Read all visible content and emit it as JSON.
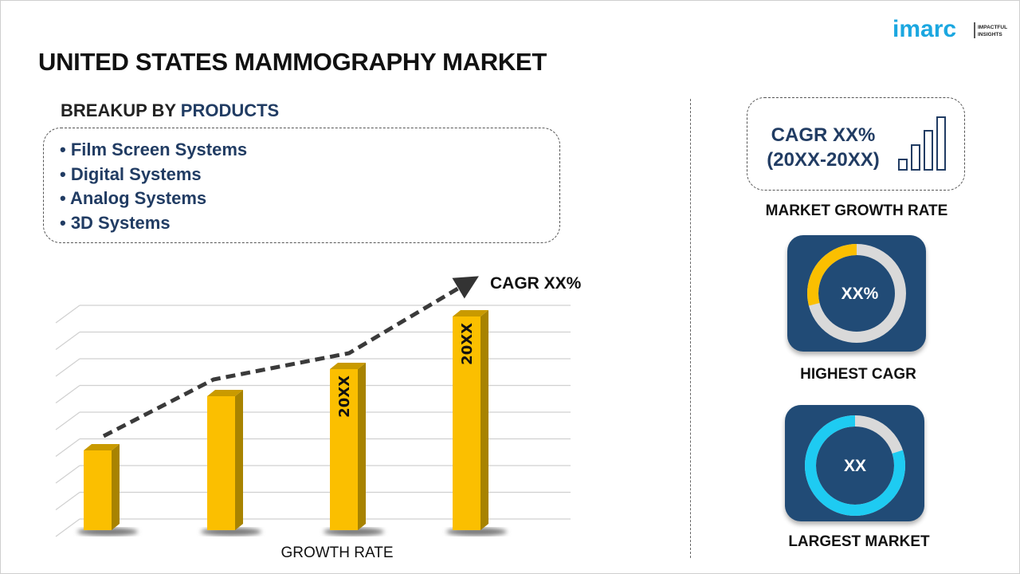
{
  "logo": {
    "brand": "imarc",
    "tagline_line1": "IMPACTFUL",
    "tagline_line2": "INSIGHTS"
  },
  "title": "UNITED STATES MAMMOGRAPHY MARKET",
  "breakup": {
    "prefix": "BREAKUP BY ",
    "highlight": "PRODUCTS",
    "items": [
      "• Film Screen Systems",
      "• Digital Systems",
      "• Analog Systems",
      "• 3D Systems"
    ]
  },
  "chart": {
    "cagr_label": "CAGR XX%",
    "bar_labels": [
      "",
      "",
      "20XX",
      "20XX"
    ],
    "xlabel": "GROWTH RATE",
    "bar_color": "#fbbf00",
    "line_style": "dashed-arrow"
  },
  "market_growth": {
    "line1": "CAGR XX%",
    "line2": "(20XX-20XX)",
    "label": "MARKET GROWTH RATE",
    "icon": "bar-chart-icon"
  },
  "highest_cagr": {
    "value": "XX%",
    "label": "HIGHEST CAGR",
    "ring_fill_percent": 29,
    "ring_color": "#fbbf00"
  },
  "largest_market": {
    "value": "XX",
    "label": "LARGEST MARKET",
    "ring_fill_percent": 80,
    "ring_color": "#1ecbf2"
  },
  "colors": {
    "navy": "#213c63",
    "card": "#214b76",
    "yellow": "#fbbf00",
    "cyan": "#1ecbf2",
    "logo": "#1ba7e0"
  }
}
